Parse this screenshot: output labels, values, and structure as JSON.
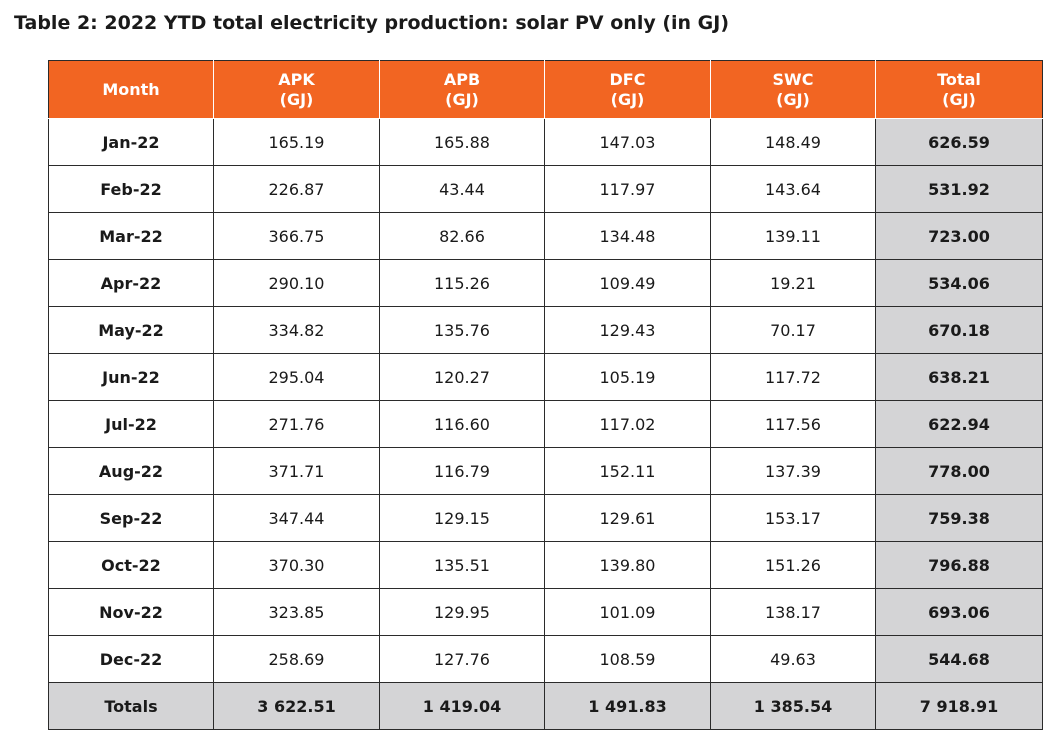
{
  "title": "Table 2: 2022 YTD total electricity production: solar PV only (in GJ)",
  "columns": [
    {
      "name": "Month",
      "unit": ""
    },
    {
      "name": "APK",
      "unit": "(GJ)"
    },
    {
      "name": "APB",
      "unit": "(GJ)"
    },
    {
      "name": "DFC",
      "unit": "(GJ)"
    },
    {
      "name": "SWC",
      "unit": "(GJ)"
    },
    {
      "name": "Total",
      "unit": "(GJ)"
    }
  ],
  "rows": [
    [
      "Jan-22",
      "165.19",
      "165.88",
      "147.03",
      "148.49",
      "626.59"
    ],
    [
      "Feb-22",
      "226.87",
      "43.44",
      "117.97",
      "143.64",
      "531.92"
    ],
    [
      "Mar-22",
      "366.75",
      "82.66",
      "134.48",
      "139.11",
      "723.00"
    ],
    [
      "Apr-22",
      "290.10",
      "115.26",
      "109.49",
      "19.21",
      "534.06"
    ],
    [
      "May-22",
      "334.82",
      "135.76",
      "129.43",
      "70.17",
      "670.18"
    ],
    [
      "Jun-22",
      "295.04",
      "120.27",
      "105.19",
      "117.72",
      "638.21"
    ],
    [
      "Jul-22",
      "271.76",
      "116.60",
      "117.02",
      "117.56",
      "622.94"
    ],
    [
      "Aug-22",
      "371.71",
      "116.79",
      "152.11",
      "137.39",
      "778.00"
    ],
    [
      "Sep-22",
      "347.44",
      "129.15",
      "129.61",
      "153.17",
      "759.38"
    ],
    [
      "Oct-22",
      "370.30",
      "135.51",
      "139.80",
      "151.26",
      "796.88"
    ],
    [
      "Nov-22",
      "323.85",
      "129.95",
      "101.09",
      "138.17",
      "693.06"
    ],
    [
      "Dec-22",
      "258.69",
      "127.76",
      "108.59",
      "49.63",
      "544.68"
    ]
  ],
  "totals": [
    "Totals",
    "3 622.51",
    "1 419.04",
    "1 491.83",
    "1 385.54",
    "7 918.91"
  ],
  "colors": {
    "header_bg": "#f26522",
    "header_text": "#ffffff",
    "total_column_bg": "#d4d4d6",
    "border": "#2b2b2b"
  }
}
